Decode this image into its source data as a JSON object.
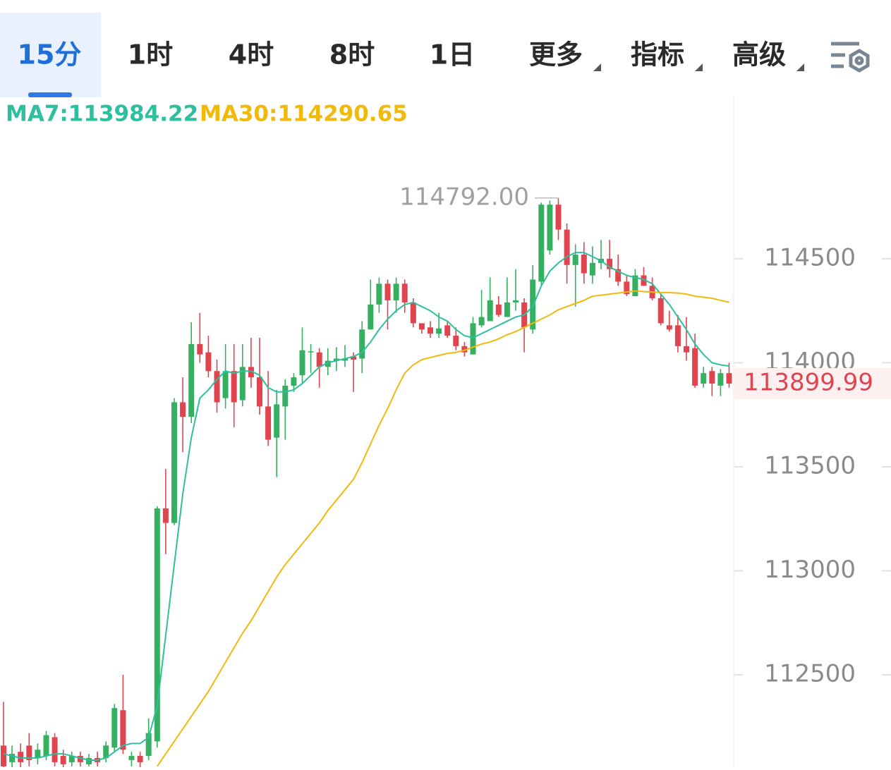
{
  "tabs": [
    "15分",
    "1时",
    "4时",
    "8时",
    "1日",
    "更多",
    "指标",
    "高级"
  ],
  "chart_data": {
    "type": "candlestick",
    "ylim": [
      112056,
      115276
    ],
    "yticks": [
      112500,
      113000,
      113500,
      114000,
      114500
    ],
    "up_color": "#35b060",
    "down_color": "#e0444f",
    "open": [
      112160,
      112080,
      112130,
      112160,
      112100,
      112110,
      112200,
      112110,
      112080,
      112110,
      112070,
      112100,
      112100,
      112150,
      112330,
      112090,
      112110,
      112110,
      112180,
      113300,
      113230,
      113810,
      113740,
      114090,
      114050,
      113960,
      113830,
      113960,
      113820,
      113980,
      113930,
      113790,
      113640,
      113790,
      113890,
      113940,
      114050,
      114050,
      113980,
      114010,
      114010,
      114030,
      114020,
      114160,
      114280,
      114380,
      114300,
      114380,
      114290,
      114190,
      114170,
      114140,
      114180,
      114130,
      114080,
      114040,
      114180,
      114200,
      114280,
      114220,
      114290,
      114290,
      114160,
      114390,
      114540,
      114760,
      114640,
      114470,
      114520,
      114420,
      114480,
      114500,
      114450,
      114390,
      114320,
      114420,
      114370,
      114310,
      114180,
      114180,
      114080,
      114070,
      113900,
      113960,
      113890,
      113950
    ],
    "high": [
      112370,
      112160,
      112170,
      112220,
      112170,
      112230,
      112220,
      112140,
      112130,
      112130,
      112120,
      112130,
      112180,
      112360,
      112500,
      112130,
      112130,
      112290,
      113310,
      113490,
      113830,
      113930,
      114195,
      114240,
      114130,
      114015,
      114090,
      114090,
      114090,
      114120,
      114120,
      113960,
      113870,
      113920,
      113950,
      114170,
      114090,
      114070,
      114070,
      114075,
      114085,
      114050,
      114200,
      114400,
      114410,
      114400,
      114410,
      114400,
      114310,
      114190,
      114200,
      114240,
      114200,
      114170,
      114100,
      114220,
      114350,
      114410,
      114320,
      114410,
      114450,
      114310,
      114470,
      114770,
      114780,
      114792,
      114670,
      114570,
      114580,
      114560,
      114590,
      114590,
      114520,
      114420,
      114450,
      114460,
      114410,
      114330,
      114250,
      114230,
      114220,
      114140,
      113980,
      113980,
      113970,
      114000
    ],
    "low": [
      112030,
      112050,
      112040,
      112060,
      112070,
      112090,
      112060,
      112050,
      112060,
      112060,
      112060,
      112060,
      112080,
      112130,
      112120,
      112060,
      112050,
      112090,
      112150,
      113080,
      113220,
      113570,
      113710,
      114000,
      113930,
      113760,
      113780,
      113690,
      113790,
      113880,
      113750,
      113600,
      113450,
      113630,
      113860,
      113900,
      113950,
      113880,
      113940,
      113960,
      113980,
      113860,
      113950,
      114170,
      114240,
      114160,
      114240,
      114240,
      114170,
      114140,
      114120,
      114120,
      114120,
      114060,
      114030,
      114040,
      114170,
      114230,
      114220,
      114220,
      114250,
      114050,
      114140,
      114370,
      114520,
      114590,
      114380,
      114270,
      114380,
      114380,
      114450,
      114410,
      114370,
      114320,
      114330,
      114370,
      114300,
      114180,
      114150,
      114050,
      114010,
      113880,
      113880,
      113840,
      113840,
      113880
    ],
    "close": [
      112060,
      112120,
      112080,
      112090,
      112140,
      112210,
      112080,
      112070,
      112110,
      112080,
      112100,
      112080,
      112160,
      112340,
      112140,
      112110,
      112080,
      112220,
      113300,
      113230,
      113810,
      113740,
      114090,
      114040,
      113960,
      113810,
      113960,
      113810,
      113980,
      113930,
      113790,
      113630,
      113800,
      113890,
      113930,
      114060,
      114055,
      113980,
      114010,
      114020,
      114020,
      114015,
      114160,
      114280,
      114380,
      114300,
      114380,
      114290,
      114190,
      114160,
      114140,
      114165,
      114130,
      114080,
      114050,
      114190,
      114220,
      114300,
      114230,
      114290,
      114300,
      114170,
      114400,
      114760,
      114760,
      114640,
      114470,
      114520,
      114430,
      114480,
      114500,
      114450,
      114390,
      114330,
      114420,
      114370,
      114310,
      114190,
      114160,
      114080,
      114050,
      113890,
      113950,
      113900,
      113950,
      113899.99
    ],
    "series": [
      {
        "name": "MA7:113984.22",
        "color": "#2ebf9f",
        "values": [
          112120,
          112110,
          112100,
          112100,
          112100,
          112110,
          112120,
          112120,
          112110,
          112100,
          112090,
          112090,
          112100,
          112130,
          112160,
          112170,
          112170,
          112200,
          112350,
          112690,
          113030,
          113370,
          113640,
          113830,
          113870,
          113920,
          113960,
          113950,
          113960,
          113960,
          113940,
          113880,
          113860,
          113860,
          113870,
          113900,
          113940,
          113980,
          114000,
          114010,
          114020,
          114030,
          114050,
          114100,
          114160,
          114210,
          114250,
          114280,
          114290,
          114270,
          114250,
          114220,
          114200,
          114160,
          114130,
          114120,
          114140,
          114160,
          114180,
          114200,
          114220,
          114230,
          114270,
          114370,
          114440,
          114480,
          114510,
          114530,
          114530,
          114510,
          114490,
          114460,
          114440,
          114420,
          114410,
          114400,
          114380,
          114330,
          114280,
          114220,
          114160,
          114090,
          114040,
          114000,
          113990,
          113984.22
        ]
      },
      {
        "name": "MA30:114290.65",
        "color": "#f0b90b",
        "values": [
          null,
          null,
          null,
          null,
          null,
          null,
          null,
          null,
          null,
          null,
          null,
          null,
          null,
          null,
          null,
          null,
          null,
          null,
          112060,
          112120,
          112180,
          112240,
          112300,
          112360,
          112420,
          112490,
          112560,
          112630,
          112700,
          112760,
          112830,
          112900,
          112970,
          113030,
          113080,
          113130,
          113180,
          113230,
          113290,
          113340,
          113390,
          113440,
          113520,
          113610,
          113700,
          113780,
          113870,
          113950,
          113990,
          114015,
          114025,
          114035,
          114045,
          114050,
          114060,
          114075,
          114090,
          114100,
          114115,
          114135,
          114150,
          114170,
          114190,
          114210,
          114230,
          114255,
          114270,
          114285,
          114300,
          114320,
          114325,
          114330,
          114335,
          114340,
          114345,
          114342,
          114340,
          114338,
          114337,
          114335,
          114330,
          114320,
          114315,
          114310,
          114300,
          114290.65
        ]
      }
    ],
    "annotations": [
      {
        "value": 114792,
        "label": "114792.00"
      }
    ],
    "last_price": {
      "value": 113899.99,
      "label": "113899.99"
    }
  }
}
